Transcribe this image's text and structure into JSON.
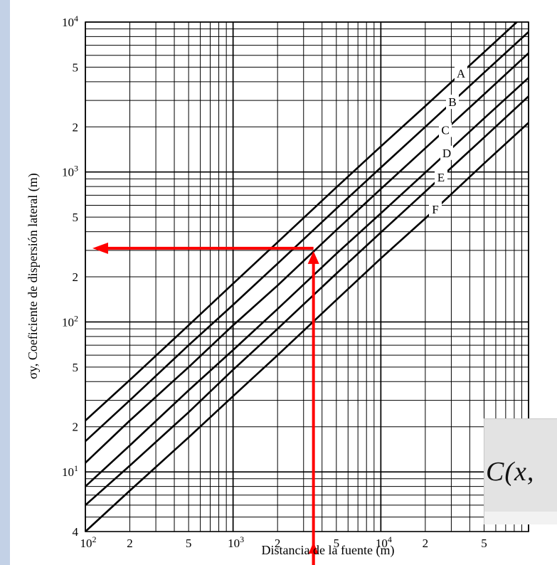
{
  "chart_data": {
    "type": "line",
    "xlabel": "Distancia de la fuente (m)",
    "ylabel": "σy, Coeficiente de dispersión lateral (m)",
    "x_scale": "log",
    "y_scale": "log",
    "xlim": [
      100,
      100000
    ],
    "ylim": [
      4,
      10000
    ],
    "grid": true,
    "x_tick_labels": [
      {
        "value": 100,
        "base": "10",
        "exp": "2"
      },
      {
        "value": 200,
        "base": "2",
        "exp": ""
      },
      {
        "value": 500,
        "base": "5",
        "exp": ""
      },
      {
        "value": 1000,
        "base": "10",
        "exp": "3"
      },
      {
        "value": 2000,
        "base": "2",
        "exp": ""
      },
      {
        "value": 5000,
        "base": "5",
        "exp": ""
      },
      {
        "value": 10000,
        "base": "10",
        "exp": "4"
      },
      {
        "value": 20000,
        "base": "2",
        "exp": ""
      },
      {
        "value": 50000,
        "base": "5",
        "exp": ""
      }
    ],
    "y_tick_labels": [
      {
        "value": 4,
        "base": "4",
        "exp": ""
      },
      {
        "value": 10,
        "base": "10",
        "exp": "1"
      },
      {
        "value": 20,
        "base": "2",
        "exp": ""
      },
      {
        "value": 50,
        "base": "5",
        "exp": ""
      },
      {
        "value": 100,
        "base": "10",
        "exp": "2"
      },
      {
        "value": 200,
        "base": "2",
        "exp": ""
      },
      {
        "value": 500,
        "base": "5",
        "exp": ""
      },
      {
        "value": 1000,
        "base": "10",
        "exp": "3"
      },
      {
        "value": 2000,
        "base": "2",
        "exp": ""
      },
      {
        "value": 5000,
        "base": "5",
        "exp": ""
      },
      {
        "value": 10000,
        "base": "10",
        "exp": "4"
      }
    ],
    "series": [
      {
        "name": "A",
        "x": [
          100,
          200,
          500,
          1000,
          2000,
          5000,
          10000,
          20000,
          50000,
          100000
        ],
        "y": [
          22,
          41,
          95,
          180,
          340,
          790,
          1480,
          2750,
          6300,
          11800
        ]
      },
      {
        "name": "B",
        "x": [
          100,
          200,
          500,
          1000,
          2000,
          5000,
          10000,
          20000,
          50000,
          100000
        ],
        "y": [
          16,
          30,
          70,
          130,
          245,
          570,
          1070,
          2000,
          4600,
          8600
        ]
      },
      {
        "name": "C",
        "x": [
          100,
          200,
          500,
          1000,
          2000,
          5000,
          10000,
          20000,
          50000,
          100000
        ],
        "y": [
          11.5,
          22,
          50,
          95,
          175,
          410,
          770,
          1440,
          3300,
          6200
        ]
      },
      {
        "name": "D",
        "x": [
          100,
          200,
          500,
          1000,
          2000,
          5000,
          10000,
          20000,
          50000,
          100000
        ],
        "y": [
          8,
          15,
          35,
          65,
          122,
          285,
          530,
          990,
          2280,
          4250
        ]
      },
      {
        "name": "E",
        "x": [
          100,
          200,
          500,
          1000,
          2000,
          5000,
          10000,
          20000,
          50000,
          100000
        ],
        "y": [
          6,
          11,
          25,
          48,
          90,
          210,
          395,
          740,
          1700,
          3200
        ]
      },
      {
        "name": "F",
        "x": [
          100,
          200,
          500,
          1000,
          2000,
          5000,
          10000,
          20000,
          50000,
          100000
        ],
        "y": [
          4,
          7.5,
          17,
          32,
          60,
          140,
          265,
          490,
          1140,
          2130
        ]
      }
    ],
    "annotations": {
      "vertical_arrow": {
        "x": 3500,
        "y_from": 4,
        "y_to": 310
      },
      "horizontal_arrow": {
        "y": 310,
        "x_from": 3500,
        "x_to": 100
      }
    },
    "colors": {
      "lines": "#000000",
      "grid": "#000000",
      "arrows": "#ff0000"
    }
  },
  "overlay": {
    "formula": "C(x,"
  }
}
